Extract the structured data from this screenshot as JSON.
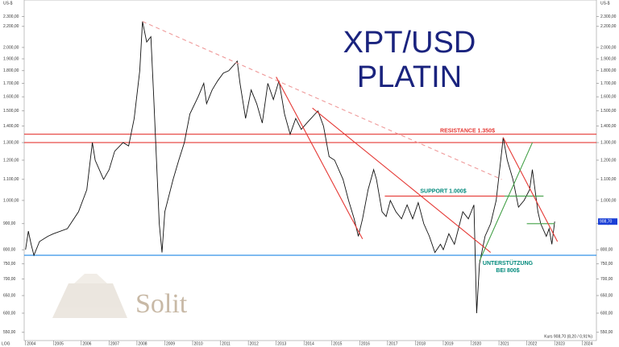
{
  "chart_data": {
    "type": "line",
    "title": "XPT/USD",
    "subtitle": "PLATIN",
    "y_label": "US-$",
    "scale_label": "LOG",
    "footer": "Kurs 908,70 (8,20 / 0,91%)",
    "last_label": "908,70",
    "logo": "Solit",
    "log_scale": true,
    "color": "#111111",
    "x": [
      2004.0,
      2004.1,
      2004.2,
      2004.3,
      2004.5,
      2004.8,
      2005.0,
      2005.5,
      2005.9,
      2006.2,
      2006.4,
      2006.5,
      2006.8,
      2007.0,
      2007.2,
      2007.5,
      2007.7,
      2007.9,
      2008.1,
      2008.2,
      2008.35,
      2008.5,
      2008.6,
      2008.8,
      2008.9,
      2009.0,
      2009.3,
      2009.5,
      2009.7,
      2009.9,
      2010.2,
      2010.4,
      2010.5,
      2010.7,
      2010.9,
      2011.1,
      2011.3,
      2011.6,
      2011.7,
      2011.9,
      2012.1,
      2012.3,
      2012.5,
      2012.7,
      2012.9,
      2013.1,
      2013.3,
      2013.5,
      2013.7,
      2013.9,
      2014.1,
      2014.4,
      2014.5,
      2014.7,
      2014.9,
      2015.1,
      2015.4,
      2015.6,
      2015.8,
      2015.95,
      2016.1,
      2016.3,
      2016.5,
      2016.6,
      2016.8,
      2016.95,
      2017.1,
      2017.3,
      2017.5,
      2017.7,
      2017.9,
      2018.1,
      2018.3,
      2018.5,
      2018.7,
      2018.9,
      2019.0,
      2019.2,
      2019.4,
      2019.7,
      2019.9,
      2020.1,
      2020.2,
      2020.3,
      2020.5,
      2020.7,
      2020.9,
      2021.1,
      2021.15,
      2021.3,
      2021.5,
      2021.7,
      2021.9,
      2022.1,
      2022.2,
      2022.4,
      2022.5,
      2022.7,
      2022.8,
      2022.9,
      2023.0
    ],
    "values": [
      800,
      870,
      820,
      780,
      830,
      850,
      860,
      880,
      950,
      1050,
      1300,
      1200,
      1100,
      1150,
      1250,
      1300,
      1280,
      1450,
      1800,
      2250,
      2050,
      2100,
      1600,
      900,
      790,
      950,
      1100,
      1200,
      1300,
      1480,
      1600,
      1700,
      1550,
      1650,
      1720,
      1780,
      1800,
      1880,
      1700,
      1450,
      1650,
      1550,
      1420,
      1700,
      1580,
      1720,
      1480,
      1350,
      1450,
      1380,
      1420,
      1480,
      1500,
      1400,
      1220,
      1200,
      1100,
      1000,
      920,
      850,
      920,
      1050,
      1150,
      1100,
      950,
      930,
      1000,
      950,
      920,
      980,
      920,
      990,
      900,
      850,
      790,
      820,
      800,
      860,
      820,
      950,
      920,
      980,
      600,
      750,
      850,
      900,
      1000,
      1250,
      1330,
      1200,
      1100,
      970,
      1000,
      1050,
      1150,
      950,
      900,
      850,
      880,
      820,
      908.7
    ],
    "xlim": [
      2003.95,
      2024.5
    ],
    "xticks": [
      2004,
      2005,
      2006,
      2007,
      2008,
      2009,
      2010,
      2011,
      2012,
      2013,
      2014,
      2015,
      2016,
      2017,
      2018,
      2019,
      2020,
      2021,
      2022,
      2023,
      2024
    ],
    "ylim": [
      530,
      2480
    ],
    "yticks": [
      {
        "value": 550,
        "label": "550,00"
      },
      {
        "value": 600,
        "label": "600,00"
      },
      {
        "value": 650,
        "label": "650,00"
      },
      {
        "value": 700,
        "label": "700,00"
      },
      {
        "value": 750,
        "label": "750,00"
      },
      {
        "value": 800,
        "label": "800,00"
      },
      {
        "value": 900,
        "label": "900,00"
      },
      {
        "value": 1000,
        "label": "1.000,00"
      },
      {
        "value": 1100,
        "label": "1.100,00"
      },
      {
        "value": 1200,
        "label": "1.200,00"
      },
      {
        "value": 1300,
        "label": "1.300,00"
      },
      {
        "value": 1400,
        "label": "1.400,00"
      },
      {
        "value": 1500,
        "label": "1.500,00"
      },
      {
        "value": 1600,
        "label": "1.600,00"
      },
      {
        "value": 1700,
        "label": "1.700,00"
      },
      {
        "value": 1800,
        "label": "1.800,00"
      },
      {
        "value": 1900,
        "label": "1.900,00"
      },
      {
        "value": 2000,
        "label": "2.000,00"
      },
      {
        "value": 2200,
        "label": "2.200,00"
      },
      {
        "value": 2300,
        "label": "2.300,00"
      }
    ],
    "hlines": [
      {
        "value": 1350,
        "color": "#e53935"
      },
      {
        "value": 1300,
        "color": "#e53935"
      },
      {
        "value": 780,
        "color": "#1e88e5"
      }
    ],
    "trendlines": [
      {
        "from": [
          2008.2,
          2250
        ],
        "to": [
          2021.1,
          1100
        ],
        "color": "#ef9a9a",
        "dashed": true
      },
      {
        "from": [
          2013.0,
          1750
        ],
        "to": [
          2016.1,
          840
        ],
        "color": "#e53935",
        "dashed": false
      },
      {
        "from": [
          2014.3,
          1520
        ],
        "to": [
          2020.7,
          790
        ],
        "color": "#e53935",
        "dashed": false
      },
      {
        "from": [
          2016.9,
          1020
        ],
        "to": [
          2021.2,
          1020
        ],
        "color": "#e53935",
        "dashed": false
      },
      {
        "from": [
          2021.2,
          1020
        ],
        "to": [
          2022.6,
          1020
        ],
        "color": "#43a047",
        "dashed": false
      },
      {
        "from": [
          2022.0,
          900
        ],
        "to": [
          2023.0,
          900
        ],
        "color": "#43a047",
        "dashed": false
      },
      {
        "from": [
          2021.15,
          1330
        ],
        "to": [
          2023.1,
          830
        ],
        "color": "#e53935",
        "dashed": false
      },
      {
        "from": [
          2020.3,
          760
        ],
        "to": [
          2022.2,
          1300
        ],
        "color": "#43a047",
        "dashed": false
      }
    ],
    "annotations": [
      {
        "text": "RESISTANCE 1.350$",
        "color": "#e53935"
      },
      {
        "text": "SUPPORT 1.000$",
        "color": "#00897b"
      },
      {
        "text": "UNTERSTÜTZUNG",
        "color": "#00897b"
      },
      {
        "text": "BEI 800$",
        "color": "#00897b"
      }
    ]
  }
}
